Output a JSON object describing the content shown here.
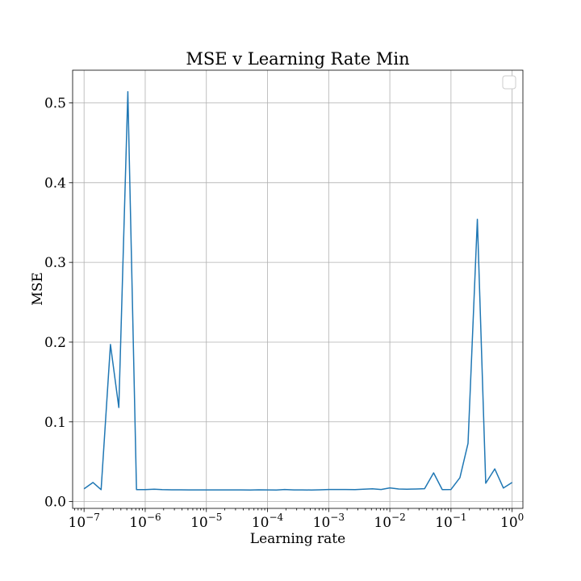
{
  "chart_data": {
    "type": "line",
    "title": "MSE v Learning Rate Min",
    "xlabel": "Learning rate",
    "ylabel": "MSE",
    "xscale": "log",
    "xlim": [
      6.5e-08,
      1.5
    ],
    "ylim": [
      -0.0085,
      0.541
    ],
    "grid": true,
    "legend": {
      "placement": "top-right",
      "entries": []
    },
    "colors": {
      "series": "#1f77b4",
      "grid": "#b0b0b0"
    },
    "x_ticks": [
      {
        "base": "10",
        "exp": "−7",
        "value": 1e-07
      },
      {
        "base": "10",
        "exp": "−6",
        "value": 1e-06
      },
      {
        "base": "10",
        "exp": "−5",
        "value": 1e-05
      },
      {
        "base": "10",
        "exp": "−4",
        "value": 0.0001
      },
      {
        "base": "10",
        "exp": "−3",
        "value": 0.001
      },
      {
        "base": "10",
        "exp": "−2",
        "value": 0.01
      },
      {
        "base": "10",
        "exp": "−1",
        "value": 0.1
      },
      {
        "base": "10",
        "exp": "0",
        "value": 1
      }
    ],
    "y_ticks": [
      {
        "label": "0.0",
        "value": 0.0
      },
      {
        "label": "0.1",
        "value": 0.1
      },
      {
        "label": "0.2",
        "value": 0.2
      },
      {
        "label": "0.3",
        "value": 0.3
      },
      {
        "label": "0.4",
        "value": 0.4
      },
      {
        "label": "0.5",
        "value": 0.5
      }
    ],
    "series": [
      {
        "x": [
          1e-07,
          1.4e-07,
          1.9e-07,
          2.7e-07,
          3.7e-07,
          5.2e-07,
          7.2e-07,
          1e-06,
          1.4e-06,
          1.9e-06,
          2.7e-06,
          3.7e-06,
          5.2e-06,
          7.2e-06,
          1e-05,
          1.4e-05,
          1.9e-05,
          2.7e-05,
          3.7e-05,
          5.2e-05,
          7.2e-05,
          0.0001,
          0.00014,
          0.00019,
          0.00027,
          0.00037,
          0.00052,
          0.00072,
          0.001,
          0.0014,
          0.0019,
          0.0027,
          0.0037,
          0.0052,
          0.0072,
          0.01,
          0.014,
          0.019,
          0.027,
          0.037,
          0.052,
          0.072,
          0.1,
          0.14,
          0.19,
          0.27,
          0.37,
          0.52,
          0.72,
          1.0
        ],
        "values": [
          0.016,
          0.024,
          0.015,
          0.197,
          0.118,
          0.514,
          0.015,
          0.015,
          0.0155,
          0.015,
          0.0148,
          0.0148,
          0.0147,
          0.0147,
          0.0146,
          0.0147,
          0.0146,
          0.0146,
          0.0146,
          0.0145,
          0.0148,
          0.0146,
          0.0145,
          0.0152,
          0.0146,
          0.0147,
          0.0145,
          0.0148,
          0.0152,
          0.0152,
          0.0151,
          0.015,
          0.0155,
          0.016,
          0.0152,
          0.0172,
          0.0158,
          0.0155,
          0.0158,
          0.0162,
          0.036,
          0.015,
          0.0152,
          0.03,
          0.073,
          0.354,
          0.023,
          0.041,
          0.017,
          0.024
        ]
      }
    ]
  }
}
